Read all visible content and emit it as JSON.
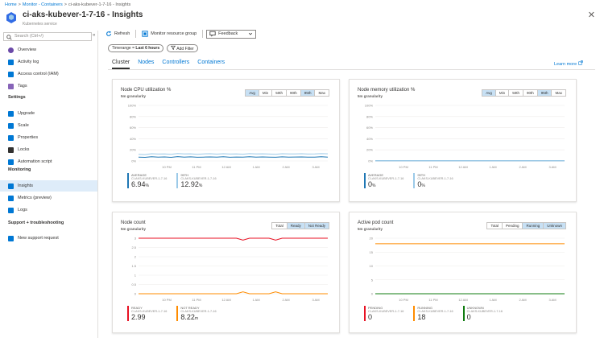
{
  "breadcrumb": [
    "Home",
    "Monitor - Containers",
    "ci-aks-kubever-1-7-16 - Insights"
  ],
  "header": {
    "title": "ci-aks-kubever-1-7-16 - Insights",
    "subtitle": "Kubernetes service",
    "close": "✕"
  },
  "sidebar": {
    "search_placeholder": "Search (Ctrl+/)",
    "collapse": "«",
    "items_top": [
      {
        "label": "Overview",
        "icon": "overview-icon",
        "color": "#6b4aa8"
      },
      {
        "label": "Activity log",
        "icon": "activity-log-icon",
        "color": "#0078d4"
      },
      {
        "label": "Access control (IAM)",
        "icon": "iam-icon",
        "color": "#0078d4"
      },
      {
        "label": "Tags",
        "icon": "tag-icon",
        "color": "#8764b8"
      }
    ],
    "section_settings": "Settings",
    "items_settings": [
      {
        "label": "Upgrade",
        "icon": "upgrade-icon",
        "color": "#0078d4"
      },
      {
        "label": "Scale",
        "icon": "scale-icon",
        "color": "#0078d4"
      },
      {
        "label": "Properties",
        "icon": "properties-icon",
        "color": "#0078d4"
      },
      {
        "label": "Locks",
        "icon": "lock-icon",
        "color": "#323130"
      },
      {
        "label": "Automation script",
        "icon": "automation-icon",
        "color": "#0078d4"
      }
    ],
    "section_monitoring": "Monitoring",
    "items_monitoring": [
      {
        "label": "Insights",
        "icon": "insights-icon",
        "color": "#0078d4"
      },
      {
        "label": "Metrics (preview)",
        "icon": "metrics-icon",
        "color": "#0078d4"
      },
      {
        "label": "Logs",
        "icon": "logs-icon",
        "color": "#0078d4"
      }
    ],
    "section_support": "Support + troubleshooting",
    "items_support": [
      {
        "label": "New support request",
        "icon": "support-icon",
        "color": "#0078d4"
      }
    ]
  },
  "toolbar": {
    "refresh": "Refresh",
    "monitor_group": "Monitor resource group",
    "feedback": "Feedback"
  },
  "filters": {
    "timerange_label": "Timerange = ",
    "timerange_value": "Last 6 hours",
    "add_filter": "Add Filter"
  },
  "tabs": [
    "Cluster",
    "Nodes",
    "Controllers",
    "Containers"
  ],
  "learn_more": "Learn more",
  "colors": {
    "accent": "#0078d4",
    "blue": "#1f77b4",
    "light_blue": "#9ccae8",
    "red": "#e81123",
    "orange": "#ff8c00",
    "green": "#107c10",
    "gray": "#8a8886"
  },
  "cards": {
    "cpu": {
      "title": "Node CPU utilization %",
      "granularity": "5m granularity",
      "toggle": [
        "Avg",
        "Min",
        "50th",
        "90th",
        "95th",
        "Max"
      ],
      "toggle_selected": [
        0,
        4
      ],
      "legend": [
        {
          "name": "AVERAGE",
          "sub": "CI-AKS-KUBEVER-1-7-16",
          "value": "6.94",
          "unit": "%"
        },
        {
          "name": "95TH",
          "sub": "CI-AKS-KUBEVER-1-7-16",
          "value": "12.92",
          "unit": "%"
        }
      ]
    },
    "memory": {
      "title": "Node memory utilization %",
      "granularity": "5m granularity",
      "toggle": [
        "Avg",
        "Min",
        "50th",
        "90th",
        "95th",
        "Max"
      ],
      "toggle_selected": [
        0,
        4
      ],
      "legend": [
        {
          "name": "AVERAGE",
          "sub": "CI-AKS-KUBEVER-1-7-16",
          "value": "0",
          "unit": "%"
        },
        {
          "name": "95TH",
          "sub": "CI-AKS-KUBEVER-1-7-16",
          "value": "0",
          "unit": "%"
        }
      ]
    },
    "nodecount": {
      "title": "Node count",
      "granularity": "5m granularity",
      "toggle": [
        "Total",
        "Ready",
        "Not Ready"
      ],
      "toggle_selected": [
        1,
        2
      ],
      "legend": [
        {
          "name": "READY",
          "sub": "CI-AKS-KUBEVER-1-7-16",
          "value": "2.99",
          "unit": ""
        },
        {
          "name": "NOT READY",
          "sub": "CI-AKS-KUBEVER-1-7-16",
          "value": "8.22",
          "unit": "m"
        }
      ]
    },
    "podcount": {
      "title": "Active pod count",
      "granularity": "5m granularity",
      "toggle": [
        "Total",
        "Pending",
        "Running",
        "Unknown"
      ],
      "toggle_selected": [
        2,
        3
      ],
      "legend": [
        {
          "name": "PENDING",
          "sub": "CI-AKS-KUBEVER-1-7-16",
          "value": "0",
          "unit": ""
        },
        {
          "name": "RUNNING",
          "sub": "CI-AKS-KUBEVER-1-7-16",
          "value": "18",
          "unit": ""
        },
        {
          "name": "UNKNOWN",
          "sub": "CI-AKS-KUBEVER-1-7-16",
          "value": "0",
          "unit": ""
        }
      ]
    }
  },
  "chart_data": [
    {
      "type": "line",
      "title": "Node CPU utilization %",
      "ylim": [
        0,
        100
      ],
      "y_ticks": [
        "100%",
        "80%",
        "60%",
        "40%",
        "20%",
        "0%"
      ],
      "x_ticks": [
        "10 PM",
        "11 PM",
        "12 AM",
        "1 AM",
        "2 AM",
        "3 AM"
      ],
      "series": [
        {
          "name": "AVERAGE",
          "color": "#1f77b4",
          "values": [
            7,
            6.5,
            7.5,
            6.8,
            7.2,
            6.5,
            7.8,
            6.9,
            7.4,
            6.6,
            7.0,
            7.3,
            6.8,
            7.5,
            6.7,
            7.1,
            6.9,
            7.6,
            6.8,
            7.2,
            7.0,
            6.6,
            7.4,
            6.9,
            7.1,
            7.3,
            6.8,
            7.0,
            7.5,
            6.9
          ]
        },
        {
          "name": "95TH",
          "color": "#9ccae8",
          "values": [
            12,
            11.5,
            13,
            12.4,
            12.8,
            11.9,
            13.3,
            12.6,
            12.9,
            12.1,
            12.7,
            13.1,
            12.3,
            13.0,
            12.5,
            12.8,
            12.2,
            13.2,
            12.6,
            12.9,
            12.4,
            12.0,
            13.1,
            12.7,
            12.8,
            13.0,
            12.5,
            12.6,
            13.2,
            12.9
          ]
        }
      ]
    },
    {
      "type": "line",
      "title": "Node memory utilization %",
      "ylim": [
        0,
        100
      ],
      "y_ticks": [
        "100%",
        "80%",
        "60%",
        "40%",
        "20%",
        "0%"
      ],
      "x_ticks": [
        "10 PM",
        "11 PM",
        "12 AM",
        "1 AM",
        "2 AM",
        "3 AM"
      ],
      "series": [
        {
          "name": "AVERAGE",
          "color": "#1f77b4",
          "values": [
            0.3,
            0.3,
            0.3,
            0.3,
            0.3,
            0.3,
            0.3,
            0.3,
            0.3,
            0.3
          ]
        },
        {
          "name": "95TH",
          "color": "#9ccae8",
          "values": [
            0.5,
            0.5,
            0.5,
            0.5,
            0.5,
            0.5,
            0.5,
            0.5,
            0.5,
            0.5
          ]
        }
      ]
    },
    {
      "type": "line",
      "title": "Node count",
      "ylim": [
        0,
        3
      ],
      "y_ticks": [
        "3",
        "2.5",
        "2",
        "1.5",
        "1",
        "0.5",
        "0"
      ],
      "x_ticks": [
        "10 PM",
        "11 PM",
        "12 AM",
        "1 AM",
        "2 AM",
        "3 AM"
      ],
      "series": [
        {
          "name": "READY",
          "color": "#e81123",
          "values": [
            3,
            3,
            3,
            3,
            3,
            3,
            3,
            3,
            3,
            3,
            3,
            3,
            3,
            3,
            3,
            3,
            2.9,
            3,
            3,
            3,
            3,
            2.9,
            3,
            3,
            3,
            3,
            3,
            3,
            3,
            3
          ]
        },
        {
          "name": "NOT READY",
          "color": "#ff8c00",
          "values": [
            0,
            0,
            0,
            0,
            0,
            0,
            0,
            0,
            0,
            0,
            0,
            0,
            0,
            0,
            0,
            0,
            0.1,
            0,
            0,
            0,
            0,
            0.1,
            0,
            0,
            0,
            0,
            0,
            0,
            0,
            0
          ]
        }
      ]
    },
    {
      "type": "line",
      "title": "Active pod count",
      "ylim": [
        0,
        20
      ],
      "y_ticks": [
        "20",
        "15",
        "10",
        "5",
        "0"
      ],
      "x_ticks": [
        "10 PM",
        "11 PM",
        "12 AM",
        "1 AM",
        "2 AM",
        "3 AM"
      ],
      "series": [
        {
          "name": "PENDING",
          "color": "#e81123",
          "values": [
            0,
            0,
            0,
            0,
            0,
            0,
            0,
            0,
            0,
            0
          ]
        },
        {
          "name": "RUNNING",
          "color": "#ff8c00",
          "values": [
            18,
            18,
            18,
            18,
            18,
            18,
            18,
            18,
            18,
            18
          ]
        },
        {
          "name": "UNKNOWN",
          "color": "#107c10",
          "values": [
            0,
            0,
            0,
            0,
            0,
            0,
            0,
            0,
            0,
            0
          ]
        }
      ]
    }
  ]
}
